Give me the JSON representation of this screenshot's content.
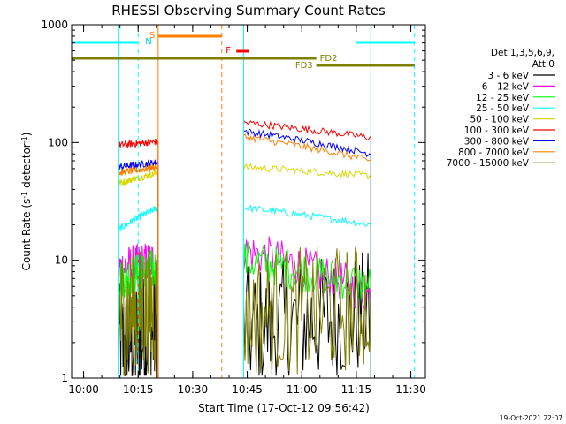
{
  "chart_data": {
    "type": "line",
    "title": "RHESSI Observing Summary Count Rates",
    "xlabel": "Start Time (17-Oct-12 09:56:42)",
    "ylabel_main": "Count Rate (s",
    "ylabel_sup1": "-1",
    "ylabel_mid": " detector",
    "ylabel_sup2": "-1",
    "ylabel_end": ")",
    "y_scale": "log",
    "ylim": [
      1,
      1000
    ],
    "xlim": [
      "09:56:42",
      "11:34:00"
    ],
    "x_ticks": [
      "10:00",
      "10:15",
      "10:30",
      "10:45",
      "11:00",
      "11:15",
      "11:30"
    ],
    "y_ticks": [
      "1",
      "10",
      "100",
      "1000"
    ],
    "detectors_line1": "Det 1,3,5,6,9,",
    "detectors_line2": "Att 0",
    "timestamp": "19-Oct-2021 22:07",
    "legend_position": "right",
    "data_windows": [
      [
        "10:09:30",
        "10:20:30"
      ],
      [
        "10:44:00",
        "11:19:00"
      ]
    ],
    "series": [
      {
        "name": "3 - 6 keV",
        "color": "#000000",
        "values": [
          [
            1.8,
            2.5
          ],
          [
            2.5,
            3.5
          ]
        ]
      },
      {
        "name": "6 - 12 keV",
        "color": "#ff00ff",
        "values": [
          [
            8.5,
            10
          ],
          [
            12,
            5
          ]
        ]
      },
      {
        "name": "12 - 25 keV",
        "color": "#00ff00",
        "values": [
          [
            7,
            8.5
          ],
          [
            10,
            6
          ]
        ]
      },
      {
        "name": "25 - 50 keV",
        "color": "#00ffff",
        "values": [
          [
            18,
            28
          ],
          [
            28,
            20
          ]
        ]
      },
      {
        "name": "50 - 100 keV",
        "color": "#d8d800",
        "values": [
          [
            45,
            55
          ],
          [
            62,
            52
          ]
        ]
      },
      {
        "name": "100 - 300 keV",
        "color": "#ff0000",
        "values": [
          [
            95,
            102
          ],
          [
            148,
            110
          ]
        ]
      },
      {
        "name": "300 - 800 keV",
        "color": "#0000ff",
        "values": [
          [
            62,
            68
          ],
          [
            125,
            80
          ]
        ]
      },
      {
        "name": "800 - 7000 keV",
        "color": "#ff8000",
        "values": [
          [
            55,
            62
          ],
          [
            112,
            70
          ]
        ]
      },
      {
        "name": "7000 - 15000 keV",
        "color": "#808000",
        "values": [
          [
            3.5,
            4
          ],
          [
            3.5,
            4
          ]
        ]
      }
    ],
    "annotations": {
      "night_label": "N",
      "saa_label": "S",
      "flare_label": "F",
      "fd2_label": "FD2",
      "fd3_label": "FD3",
      "night_intervals": [
        [
          "09:56:42",
          "10:15:00"
        ],
        [
          "11:15:00",
          "11:31:00"
        ]
      ],
      "night_bounds": [
        "10:15:00",
        "11:31:00"
      ],
      "saa_interval": [
        "10:20:30",
        "10:38:00"
      ],
      "saa_bound": "10:38:00",
      "flare_interval": [
        "10:42:00",
        "10:45:30"
      ],
      "fd2_interval": [
        "09:56:42",
        "11:04:00"
      ],
      "fd3_interval": [
        "11:04:00",
        "11:31:00"
      ]
    }
  }
}
